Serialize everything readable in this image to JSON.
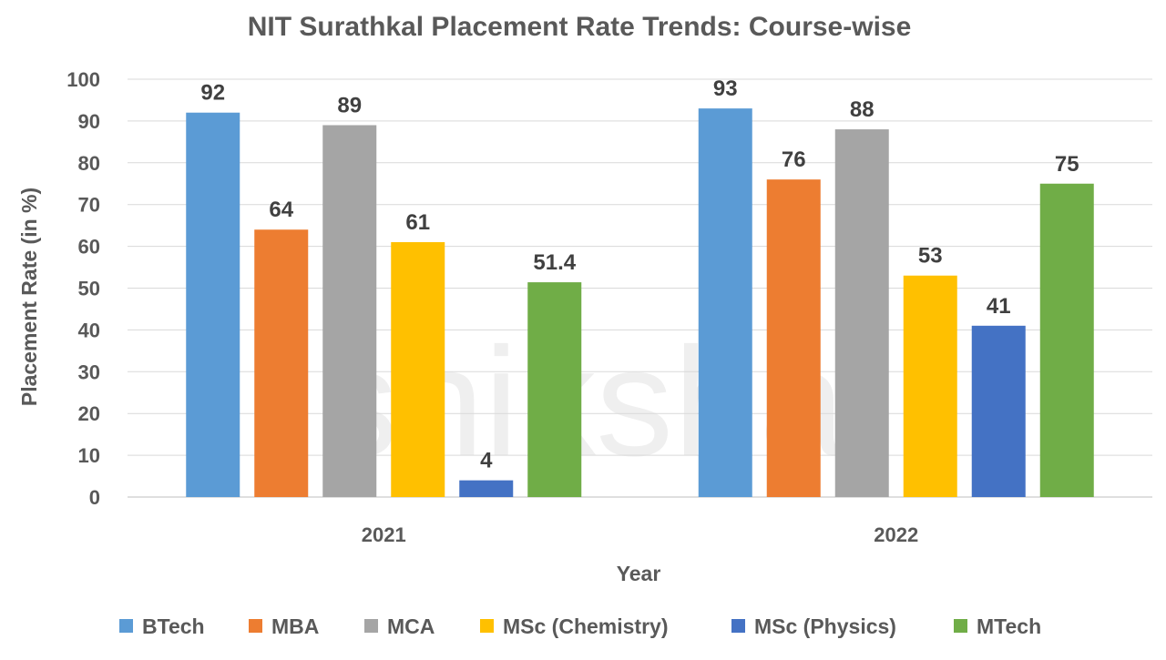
{
  "watermark": "shiksha",
  "chart_data": {
    "type": "bar",
    "title": "NIT Surathkal Placement Rate Trends: Course-wise",
    "xlabel": "Year",
    "ylabel": "Placement Rate (in %)",
    "ylim": [
      0,
      100
    ],
    "yticks": [
      0,
      10,
      20,
      30,
      40,
      50,
      60,
      70,
      80,
      90,
      100
    ],
    "grid": true,
    "legend_position": "bottom",
    "categories": [
      "2021",
      "2022"
    ],
    "series": [
      {
        "name": "BTech",
        "color": "#5B9BD5",
        "values": [
          92,
          93
        ]
      },
      {
        "name": "MBA",
        "color": "#ED7D31",
        "values": [
          64,
          76
        ]
      },
      {
        "name": "MCA",
        "color": "#A5A5A5",
        "values": [
          89,
          88
        ]
      },
      {
        "name": "MSc (Chemistry)",
        "color": "#FFC000",
        "values": [
          61,
          53
        ]
      },
      {
        "name": "MSc (Physics)",
        "color": "#4472C4",
        "values": [
          4,
          41
        ]
      },
      {
        "name": "MTech",
        "color": "#70AD47",
        "values": [
          51.4,
          75
        ]
      }
    ]
  }
}
